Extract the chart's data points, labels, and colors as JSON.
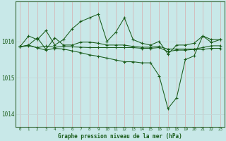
{
  "xlabel": "Graphe pression niveau de la mer (hPa)",
  "background_color": "#c8e8e8",
  "line_color": "#1a5c1a",
  "grid_color_v": "#d4b8b8",
  "grid_color_h": "#c0d8d8",
  "ylim": [
    1013.65,
    1017.1
  ],
  "yticks": [
    1014,
    1015,
    1016
  ],
  "x_ticks": [
    0,
    1,
    2,
    3,
    4,
    5,
    6,
    7,
    8,
    9,
    10,
    11,
    12,
    13,
    14,
    15,
    16,
    17,
    18,
    19,
    20,
    21,
    22,
    23
  ],
  "series": [
    [
      1015.85,
      1016.15,
      1016.05,
      1016.3,
      1015.9,
      1016.05,
      1016.35,
      1016.55,
      1016.65,
      1016.75,
      1016.0,
      1016.25,
      1016.65,
      1016.05,
      1015.95,
      1015.9,
      1016.0,
      1015.65,
      1015.9,
      1015.9,
      1015.95,
      1016.15,
      1016.05,
      1016.05
    ],
    [
      1015.85,
      1015.88,
      1015.83,
      1015.87,
      1015.84,
      1015.86,
      1015.85,
      1015.84,
      1015.83,
      1015.83,
      1015.83,
      1015.83,
      1015.83,
      1015.83,
      1015.81,
      1015.81,
      1015.83,
      1015.72,
      1015.76,
      1015.76,
      1015.78,
      1015.78,
      1015.81,
      1015.81
    ],
    [
      1015.85,
      1015.9,
      1016.1,
      1015.78,
      1016.1,
      1015.9,
      1015.9,
      1015.98,
      1015.98,
      1015.95,
      1015.9,
      1015.9,
      1015.9,
      1015.86,
      1015.84,
      1015.84,
      1015.86,
      1015.79,
      1015.79,
      1015.79,
      1015.79,
      1015.83,
      1015.88,
      1015.88
    ],
    [
      1015.85,
      1015.9,
      1015.82,
      1015.76,
      1015.81,
      1015.79,
      1015.74,
      1015.69,
      1015.63,
      1015.59,
      1015.54,
      1015.49,
      1015.44,
      1015.44,
      1015.41,
      1015.41,
      1015.05,
      1014.15,
      1014.45,
      1015.5,
      1015.6,
      1016.15,
      1015.97,
      1016.05
    ]
  ]
}
